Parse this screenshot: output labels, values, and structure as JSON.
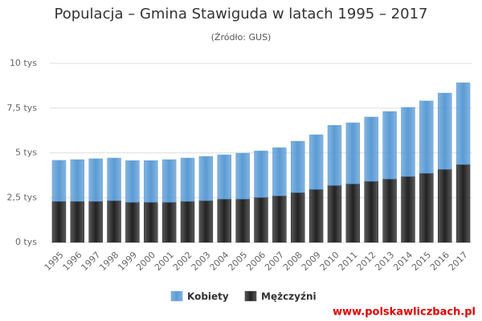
{
  "chart_data": {
    "type": "stacked-bar",
    "title": "Populacja – Gmina Stawiguda w latach 1995 – 2017",
    "subtitle": "(Źródło: GUS)",
    "source": "www.polskawliczbach.pl",
    "categories": [
      "1995",
      "1996",
      "1997",
      "1998",
      "1999",
      "2000",
      "2001",
      "2002",
      "2003",
      "2004",
      "2005",
      "2006",
      "2007",
      "2008",
      "2009",
      "2010",
      "2011",
      "2012",
      "2013",
      "2014",
      "2015",
      "2016",
      "2017"
    ],
    "series": [
      {
        "name": "Kobiety",
        "color": "#5b9bd5",
        "values": [
          2290,
          2330,
          2380,
          2380,
          2330,
          2330,
          2380,
          2420,
          2470,
          2470,
          2560,
          2600,
          2690,
          2870,
          3050,
          3360,
          3410,
          3590,
          3770,
          3860,
          4040,
          4260,
          4570
        ]
      },
      {
        "name": "Mężczyźni",
        "color": "#222222",
        "values": [
          2290,
          2290,
          2290,
          2330,
          2240,
          2240,
          2240,
          2290,
          2330,
          2420,
          2420,
          2510,
          2600,
          2780,
          2960,
          3180,
          3270,
          3410,
          3540,
          3680,
          3860,
          4080,
          4350
        ]
      }
    ],
    "ylim": [
      0,
      10000
    ],
    "yticks": [
      {
        "value": 0,
        "label": "0 tys"
      },
      {
        "value": 2500,
        "label": "2,5 tys"
      },
      {
        "value": 5000,
        "label": "5 tys"
      },
      {
        "value": 7500,
        "label": "7,5 tys"
      },
      {
        "value": 10000,
        "label": "10 tys"
      }
    ],
    "grid": true
  }
}
